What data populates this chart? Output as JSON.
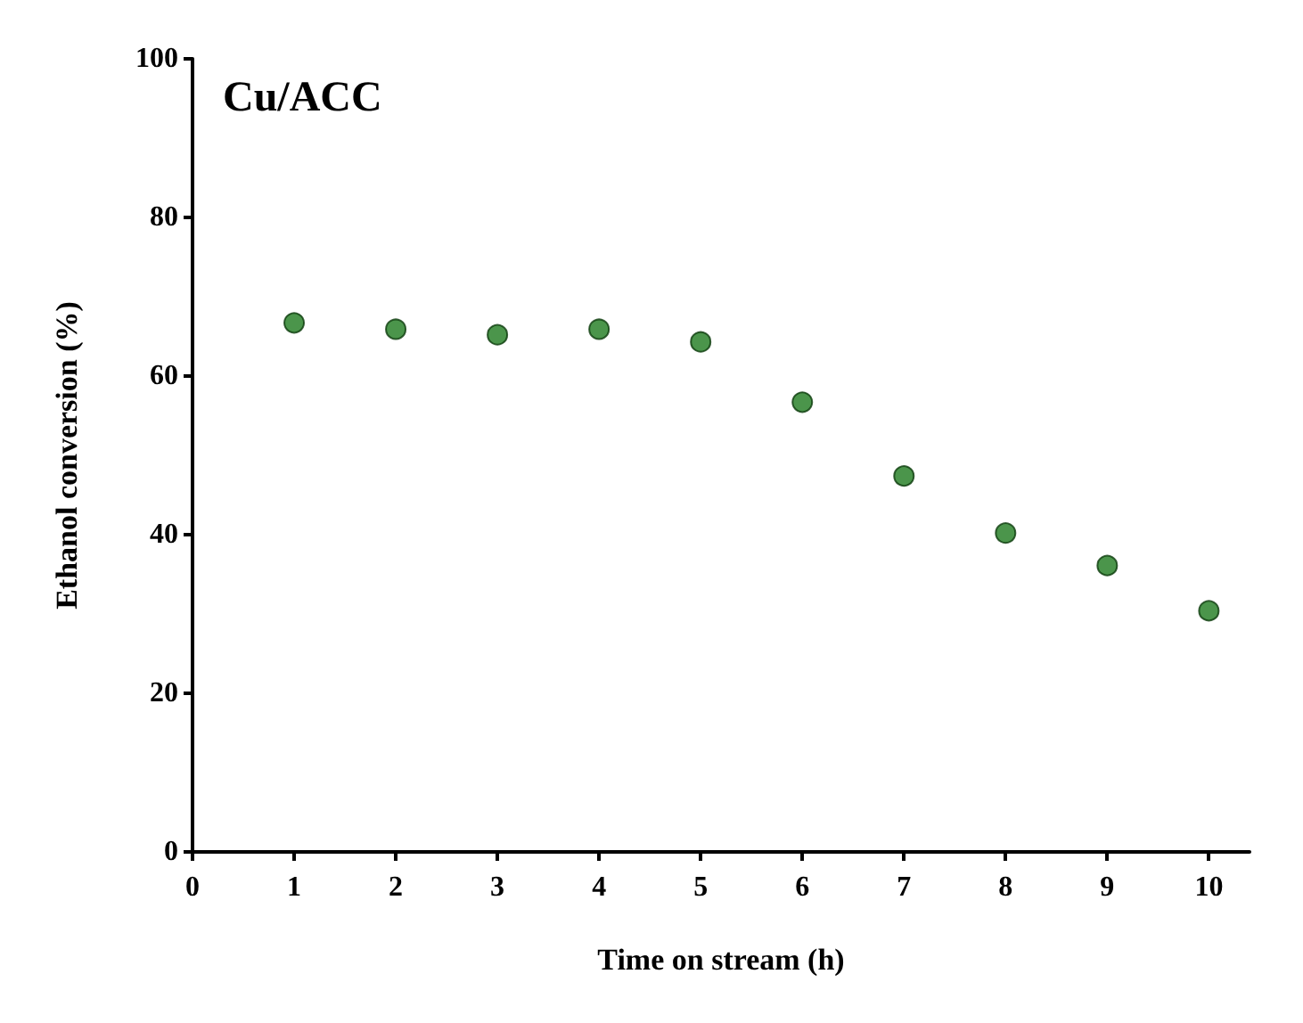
{
  "chart_data": {
    "type": "scatter",
    "title": "Cu/ACC",
    "xlabel": "Time on stream (h)",
    "ylabel": "Ethanol conversion (%)",
    "x": [
      1,
      2,
      3,
      4,
      5,
      6,
      7,
      8,
      9,
      10
    ],
    "series": [
      {
        "color": "#1e7a1e",
        "values": [
          66.7,
          65.9,
          65.2,
          65.9,
          64.3,
          56.7,
          47.4,
          40.2,
          36.1,
          30.4
        ]
      }
    ],
    "xlim": [
      0,
      10.4
    ],
    "xticks": [
      0,
      1,
      2,
      3,
      4,
      5,
      6,
      7,
      8,
      9,
      10
    ],
    "ylim": [
      0,
      100
    ],
    "yticks": [
      0,
      20,
      40,
      60,
      80,
      100
    ],
    "grid": false,
    "marker": "circle"
  }
}
